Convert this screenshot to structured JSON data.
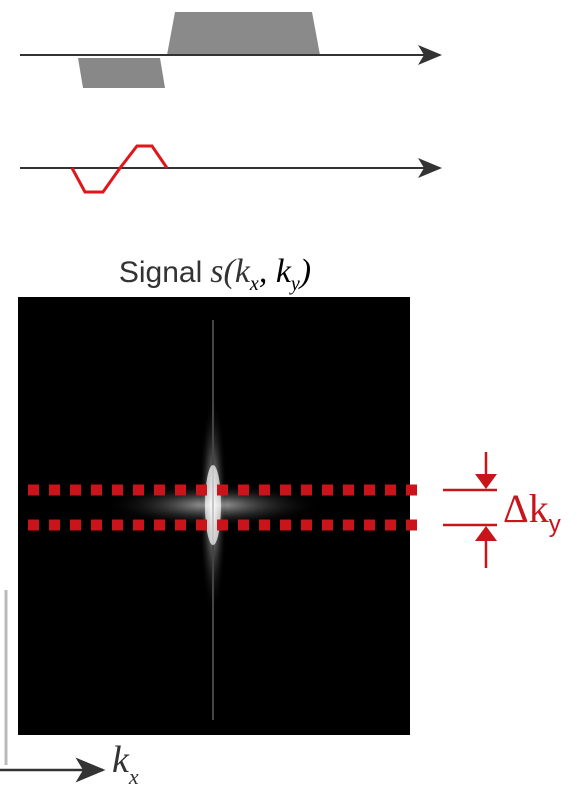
{
  "signal_label": {
    "word": "Signal",
    "func": "s(k",
    "sub1": "x",
    "sep": ", k",
    "sub2": "y",
    "close": ")"
  },
  "delta_label": {
    "main": "Δk",
    "sub": "y"
  },
  "axis_label": {
    "main": "k",
    "sub": "x"
  }
}
